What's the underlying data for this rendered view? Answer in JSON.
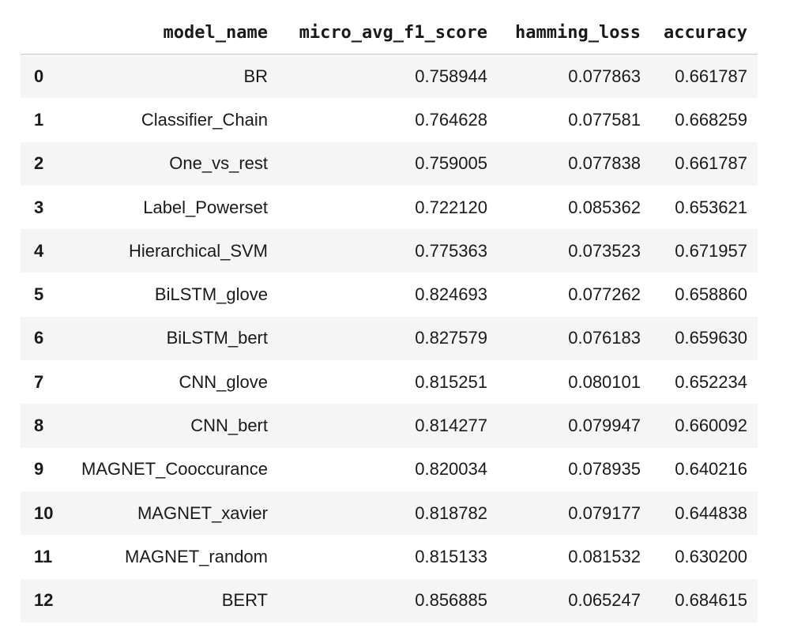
{
  "table": {
    "index_header": "",
    "columns": [
      "model_name",
      "micro_avg_f1_score",
      "hamming_loss",
      "accuracy"
    ],
    "rows": [
      {
        "index": "0",
        "model_name": "BR",
        "micro_avg_f1_score": "0.758944",
        "hamming_loss": "0.077863",
        "accuracy": "0.661787"
      },
      {
        "index": "1",
        "model_name": "Classifier_Chain",
        "micro_avg_f1_score": "0.764628",
        "hamming_loss": "0.077581",
        "accuracy": "0.668259"
      },
      {
        "index": "2",
        "model_name": "One_vs_rest",
        "micro_avg_f1_score": "0.759005",
        "hamming_loss": "0.077838",
        "accuracy": "0.661787"
      },
      {
        "index": "3",
        "model_name": "Label_Powerset",
        "micro_avg_f1_score": "0.722120",
        "hamming_loss": "0.085362",
        "accuracy": "0.653621"
      },
      {
        "index": "4",
        "model_name": "Hierarchical_SVM",
        "micro_avg_f1_score": "0.775363",
        "hamming_loss": "0.073523",
        "accuracy": "0.671957"
      },
      {
        "index": "5",
        "model_name": "BiLSTM_glove",
        "micro_avg_f1_score": "0.824693",
        "hamming_loss": "0.077262",
        "accuracy": "0.658860"
      },
      {
        "index": "6",
        "model_name": "BiLSTM_bert",
        "micro_avg_f1_score": "0.827579",
        "hamming_loss": "0.076183",
        "accuracy": "0.659630"
      },
      {
        "index": "7",
        "model_name": "CNN_glove",
        "micro_avg_f1_score": "0.815251",
        "hamming_loss": "0.080101",
        "accuracy": "0.652234"
      },
      {
        "index": "8",
        "model_name": "CNN_bert",
        "micro_avg_f1_score": "0.814277",
        "hamming_loss": "0.079947",
        "accuracy": "0.660092"
      },
      {
        "index": "9",
        "model_name": "MAGNET_Cooccurance",
        "micro_avg_f1_score": "0.820034",
        "hamming_loss": "0.078935",
        "accuracy": "0.640216"
      },
      {
        "index": "10",
        "model_name": "MAGNET_xavier",
        "micro_avg_f1_score": "0.818782",
        "hamming_loss": "0.079177",
        "accuracy": "0.644838"
      },
      {
        "index": "11",
        "model_name": "MAGNET_random",
        "micro_avg_f1_score": "0.815133",
        "hamming_loss": "0.081532",
        "accuracy": "0.630200"
      },
      {
        "index": "12",
        "model_name": "BERT",
        "micro_avg_f1_score": "0.856885",
        "hamming_loss": "0.065247",
        "accuracy": "0.684615"
      }
    ]
  }
}
